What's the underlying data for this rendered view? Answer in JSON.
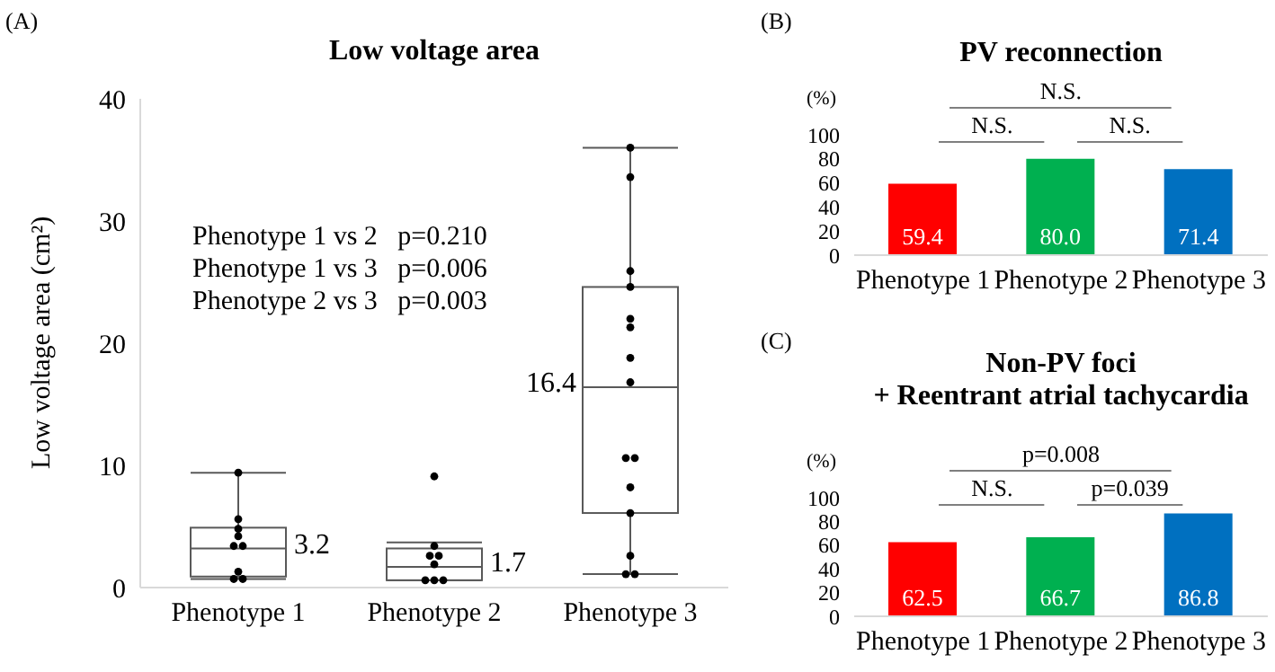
{
  "chart_data": [
    {
      "type": "box",
      "title": "Low voltage area",
      "ylabel": "Low voltage area (cm²)",
      "categories": [
        "Phenotype 1",
        "Phenotype 2",
        "Phenotype 3"
      ],
      "boxes": [
        {
          "low": 0.7,
          "q1": 0.9,
          "median": 3.2,
          "q3": 4.9,
          "high": 9.4
        },
        {
          "low": 0.6,
          "q1": 0.6,
          "median": 1.7,
          "q3": 3.2,
          "high": 3.7
        },
        {
          "low": 1.1,
          "q1": 6.1,
          "median": 16.4,
          "q3": 24.6,
          "high": 36.0
        }
      ],
      "series": [
        {
          "type": "scatter",
          "color": "#000000",
          "x": [
            "Phenotype 1",
            "Phenotype 1",
            "Phenotype 1",
            "Phenotype 1",
            "Phenotype 1",
            "Phenotype 1",
            "Phenotype 1",
            "Phenotype 1",
            "Phenotype 1",
            "Phenotype 2",
            "Phenotype 2",
            "Phenotype 2",
            "Phenotype 2",
            "Phenotype 2",
            "Phenotype 2",
            "Phenotype 2",
            "Phenotype 2",
            "Phenotype 3",
            "Phenotype 3",
            "Phenotype 3",
            "Phenotype 3",
            "Phenotype 3",
            "Phenotype 3",
            "Phenotype 3",
            "Phenotype 3",
            "Phenotype 3",
            "Phenotype 3",
            "Phenotype 3",
            "Phenotype 3",
            "Phenotype 3",
            "Phenotype 3",
            "Phenotype 3"
          ],
          "values": [
            9.4,
            5.6,
            4.8,
            4.2,
            3.4,
            3.4,
            1.3,
            0.7,
            0.7,
            9.1,
            3.4,
            2.6,
            2.6,
            1.9,
            0.6,
            0.6,
            0.6,
            36.0,
            33.6,
            25.9,
            24.6,
            22.0,
            21.3,
            18.8,
            16.8,
            10.6,
            10.6,
            8.2,
            6.1,
            2.6,
            1.1,
            1.1
          ]
        }
      ],
      "ylim": [
        0,
        40
      ],
      "yticks": [
        0,
        10,
        20,
        30,
        40
      ],
      "annotations": [
        "(A)",
        "Phenotype 1 vs 2   p=0.210",
        "Phenotype 1 vs 3   p=0.006",
        "Phenotype 2 vs 3   p=0.003",
        {
          "text": "3.2",
          "x": "Phenotype 1",
          "y": 3.2
        },
        {
          "text": "1.7",
          "x": "Phenotype 2",
          "y": 1.7
        },
        {
          "text": "16.4",
          "x": "Phenotype 3",
          "y": 16.4
        }
      ]
    },
    {
      "type": "bar",
      "title": "PV reconnection",
      "ylabel": "(%)",
      "categories": [
        "Phenotype 1",
        "Phenotype 2",
        "Phenotype 3"
      ],
      "values": [
        59.4,
        80.0,
        71.4
      ],
      "colors": [
        "#ff0000",
        "#00b050",
        "#0070c0"
      ],
      "value_labels": [
        "59.4",
        "80.0",
        "71.4"
      ],
      "ylim": [
        0,
        100
      ],
      "yticks": [
        0,
        20,
        40,
        60,
        80,
        100
      ],
      "annotations": [
        "(B)",
        "N.S.",
        "N.S.",
        "N.S."
      ]
    },
    {
      "type": "bar",
      "title": "Non-PV foci\n+ Reentrant atrial tachycardia",
      "ylabel": "(%)",
      "categories": [
        "Phenotype 1",
        "Phenotype 2",
        "Phenotype 3"
      ],
      "values": [
        62.5,
        66.7,
        86.8
      ],
      "colors": [
        "#ff0000",
        "#00b050",
        "#0070c0"
      ],
      "value_labels": [
        "62.5",
        "66.7",
        "86.8"
      ],
      "ylim": [
        0,
        100
      ],
      "yticks": [
        0,
        20,
        40,
        60,
        80,
        100
      ],
      "annotations": [
        "(C)",
        "p=0.008",
        "N.S.",
        "p=0.039"
      ]
    }
  ]
}
